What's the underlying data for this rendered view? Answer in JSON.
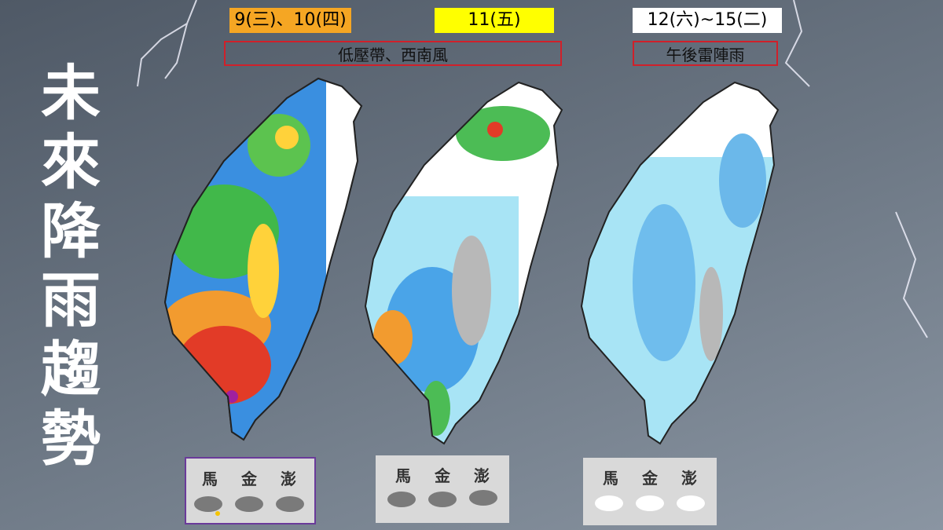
{
  "title": "未來降雨趨勢",
  "periods": [
    {
      "label": "9(三)、10(四)"
    },
    {
      "label": "11(五)"
    },
    {
      "label": "12(六)~15(二)"
    }
  ],
  "weather_notes": [
    {
      "text": "低壓帶、西南風"
    },
    {
      "text": "午後雷陣雨"
    }
  ],
  "outlying_islands": [
    {
      "labels": [
        "馬",
        "金",
        "澎"
      ]
    },
    {
      "labels": [
        "馬",
        "金",
        "澎"
      ]
    },
    {
      "labels": [
        "馬",
        "金",
        "澎"
      ]
    }
  ]
}
